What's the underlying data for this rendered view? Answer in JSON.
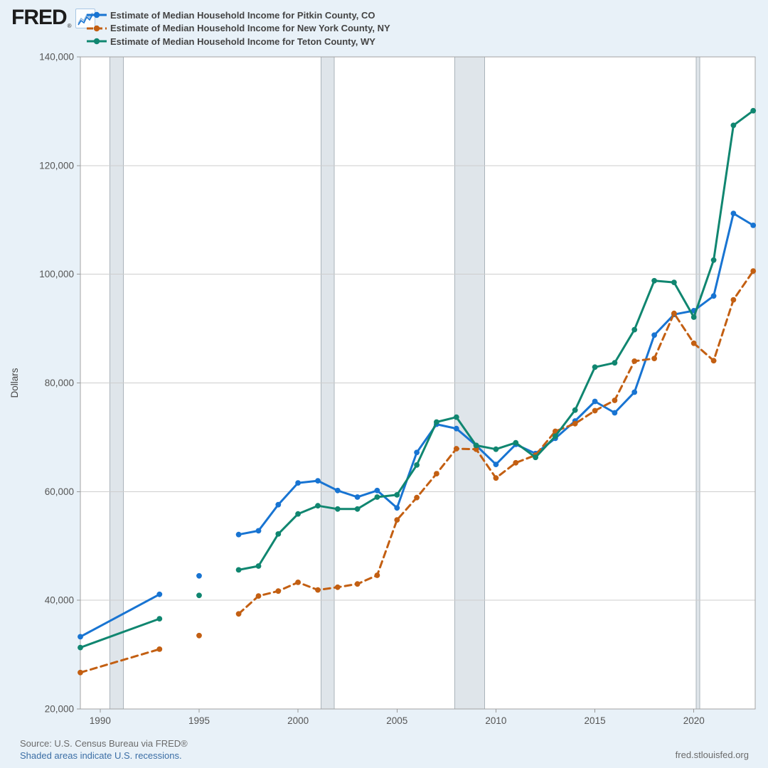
{
  "header": {
    "logo_text": "FRED",
    "registered_mark": "®",
    "legend": [
      {
        "label": "Estimate of Median Household Income for Pitkin County, CO",
        "color": "#1874d2",
        "dashed": false
      },
      {
        "label": "Estimate of Median Household Income for New York County, NY",
        "color": "#c35f12",
        "dashed": true
      },
      {
        "label": "Estimate of Median Household Income for Teton County, WY",
        "color": "#108670",
        "dashed": false
      }
    ]
  },
  "footer": {
    "source_text": "Source: U.S. Census Bureau via FRED®",
    "recession_note": "Shaded areas indicate U.S. recessions.",
    "site": "fred.stlouisfed.org"
  },
  "chart_data": {
    "type": "line",
    "title": "",
    "xlabel": "",
    "ylabel": "Dollars",
    "xlim": [
      1989,
      2023.1
    ],
    "ylim": [
      20000,
      140000
    ],
    "grid": "horizontal-only",
    "legend_position": "top-left",
    "x_ticks": [
      1990,
      1995,
      2000,
      2005,
      2010,
      2015,
      2020
    ],
    "y_ticks": [
      {
        "value": 20000,
        "label": "20,000"
      },
      {
        "value": 40000,
        "label": "40,000"
      },
      {
        "value": 60000,
        "label": "60,000"
      },
      {
        "value": 80000,
        "label": "80,000"
      },
      {
        "value": 100000,
        "label": "100,000"
      },
      {
        "value": 120000,
        "label": "120,000"
      },
      {
        "value": 140000,
        "label": "140,000"
      }
    ],
    "recession_bands": [
      [
        1990.5,
        1991.17
      ],
      [
        2001.17,
        2001.83
      ],
      [
        2007.92,
        2009.42
      ],
      [
        2020.12,
        2020.3
      ]
    ],
    "band_fill": "#dfe5ea",
    "band_edge": "#aab3ba",
    "grid_color": "#cdcdcd",
    "frame_color": "#a3a3a3",
    "tick_text_color": "#555555",
    "series": [
      {
        "name": "Estimate of Median Household Income for Pitkin County, CO",
        "color": "#1874d2",
        "dashed": false,
        "segments": [
          [
            [
              1989,
              33300
            ],
            [
              1993,
              41100
            ]
          ],
          [
            [
              1995,
              44500
            ]
          ],
          [
            [
              1997,
              52100
            ],
            [
              1998,
              52800
            ],
            [
              1999,
              57600
            ],
            [
              2000,
              61600
            ],
            [
              2001,
              62000
            ],
            [
              2002,
              60200
            ],
            [
              2003,
              59000
            ],
            [
              2004,
              60200
            ],
            [
              2005,
              57000
            ],
            [
              2006,
              67200
            ],
            [
              2007,
              72400
            ],
            [
              2008,
              71600
            ],
            [
              2009,
              68500
            ],
            [
              2010,
              65000
            ],
            [
              2011,
              68700
            ],
            [
              2012,
              67000
            ],
            [
              2013,
              69800
            ],
            [
              2014,
              73000
            ],
            [
              2015,
              76600
            ],
            [
              2016,
              74500
            ],
            [
              2017,
              78300
            ],
            [
              2018,
              88800
            ],
            [
              2019,
              92600
            ],
            [
              2020,
              93300
            ],
            [
              2021,
              96000
            ],
            [
              2022,
              111200
            ],
            [
              2023,
              109000
            ]
          ]
        ]
      },
      {
        "name": "Estimate of Median Household Income for New York County, NY",
        "color": "#c35f12",
        "dashed": true,
        "segments": [
          [
            [
              1989,
              26700
            ],
            [
              1993,
              31000
            ]
          ],
          [
            [
              1995,
              33500
            ]
          ],
          [
            [
              1997,
              37500
            ],
            [
              1998,
              40800
            ],
            [
              1999,
              41700
            ],
            [
              2000,
              43300
            ],
            [
              2001,
              41900
            ],
            [
              2002,
              42400
            ],
            [
              2003,
              43000
            ],
            [
              2004,
              44600
            ],
            [
              2005,
              54800
            ],
            [
              2006,
              58900
            ],
            [
              2007,
              63300
            ],
            [
              2008,
              67900
            ],
            [
              2009,
              67800
            ],
            [
              2010,
              62500
            ],
            [
              2011,
              65300
            ],
            [
              2012,
              66700
            ],
            [
              2013,
              71100
            ],
            [
              2014,
              72500
            ],
            [
              2015,
              74900
            ],
            [
              2016,
              76800
            ],
            [
              2017,
              84000
            ],
            [
              2018,
              84500
            ],
            [
              2019,
              92800
            ],
            [
              2020,
              87300
            ],
            [
              2021,
              84100
            ],
            [
              2022,
              95300
            ],
            [
              2023,
              100600
            ]
          ]
        ]
      },
      {
        "name": "Estimate of Median Household Income for Teton County, WY",
        "color": "#108670",
        "dashed": false,
        "segments": [
          [
            [
              1989,
              31300
            ],
            [
              1993,
              36600
            ]
          ],
          [
            [
              1995,
              40900
            ]
          ],
          [
            [
              1997,
              45600
            ],
            [
              1998,
              46300
            ],
            [
              1999,
              52200
            ],
            [
              2000,
              55900
            ],
            [
              2001,
              57400
            ],
            [
              2002,
              56800
            ],
            [
              2003,
              56800
            ],
            [
              2004,
              59000
            ],
            [
              2005,
              59400
            ],
            [
              2006,
              64900
            ],
            [
              2007,
              72800
            ],
            [
              2008,
              73700
            ],
            [
              2009,
              68500
            ],
            [
              2010,
              67800
            ],
            [
              2011,
              69000
            ],
            [
              2012,
              66300
            ],
            [
              2013,
              70200
            ],
            [
              2014,
              75000
            ],
            [
              2015,
              82900
            ],
            [
              2016,
              83700
            ],
            [
              2017,
              89800
            ],
            [
              2018,
              98800
            ],
            [
              2019,
              98500
            ],
            [
              2020,
              92100
            ],
            [
              2021,
              102600
            ],
            [
              2022,
              127400
            ],
            [
              2023,
              130100
            ]
          ]
        ]
      }
    ]
  }
}
